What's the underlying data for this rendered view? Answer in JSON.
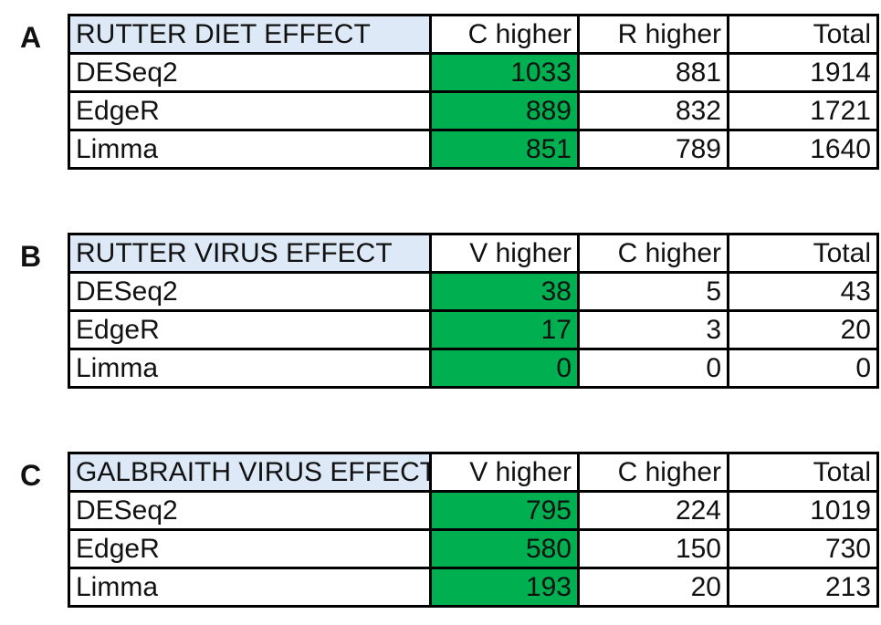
{
  "chart_data": [
    {
      "type": "table",
      "panel_label": "A",
      "title": "RUTTER DIET EFFECT",
      "columns": [
        "C higher",
        "R higher",
        "Total"
      ],
      "rows": [
        {
          "method": "DESeq2",
          "values": [
            1033,
            881,
            1914
          ]
        },
        {
          "method": "EdgeR",
          "values": [
            889,
            832,
            1721
          ]
        },
        {
          "method": "Limma",
          "values": [
            851,
            789,
            1640
          ]
        }
      ],
      "highlight_column": 0,
      "highlight_color": "#00b050",
      "title_color": "#dde9f6"
    },
    {
      "type": "table",
      "panel_label": "B",
      "title": "RUTTER VIRUS EFFECT",
      "columns": [
        "V higher",
        "C higher",
        "Total"
      ],
      "rows": [
        {
          "method": "DESeq2",
          "values": [
            38,
            5,
            43
          ]
        },
        {
          "method": "EdgeR",
          "values": [
            17,
            3,
            20
          ]
        },
        {
          "method": "Limma",
          "values": [
            0,
            0,
            0
          ]
        }
      ],
      "highlight_column": 0,
      "highlight_color": "#00b050",
      "title_color": "#dde9f6"
    },
    {
      "type": "table",
      "panel_label": "C",
      "title": "GALBRAITH VIRUS EFFECT",
      "columns": [
        "V higher",
        "C higher",
        "Total"
      ],
      "rows": [
        {
          "method": "DESeq2",
          "values": [
            795,
            224,
            1019
          ]
        },
        {
          "method": "EdgeR",
          "values": [
            580,
            150,
            730
          ]
        },
        {
          "method": "Limma",
          "values": [
            193,
            20,
            213
          ]
        }
      ],
      "highlight_column": 0,
      "highlight_color": "#00b050",
      "title_color": "#dde9f6"
    }
  ]
}
